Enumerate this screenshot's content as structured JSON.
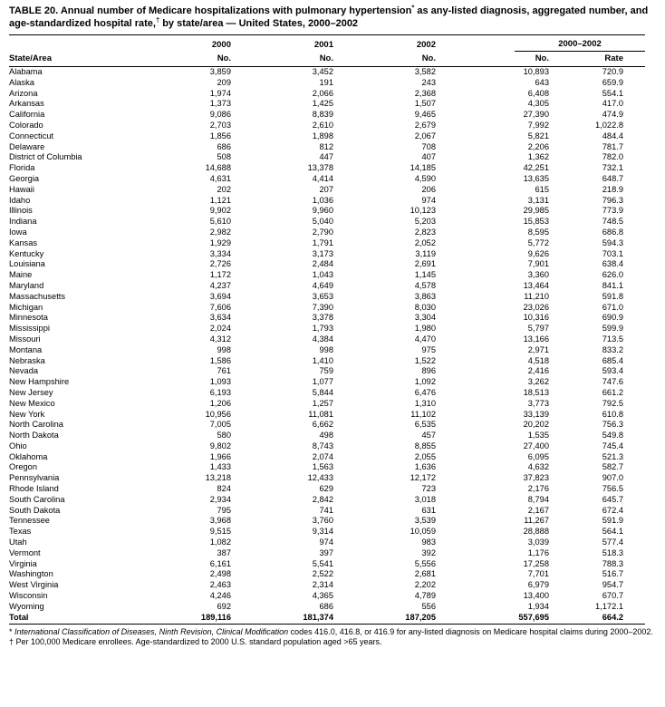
{
  "title": {
    "part1": "TABLE 20. Annual number of Medicare hospitalizations with pulmonary hypertension",
    "sup1": "*",
    "part2": " as any-listed diagnosis, aggregated number, and age-standardized hospital rate,",
    "sup2": "†",
    "part3": " by state/area — United States, 2000–2002"
  },
  "table": {
    "year_headers": [
      "2000",
      "2001",
      "2002"
    ],
    "group_header": "2000–2002",
    "col_headers": [
      "State/Area",
      "No.",
      "No.",
      "No.",
      "No.",
      "Rate"
    ],
    "rows": [
      [
        "Alabama",
        "3,859",
        "3,452",
        "3,582",
        "10,893",
        "720.9"
      ],
      [
        "Alaska",
        "209",
        "191",
        "243",
        "643",
        "659.9"
      ],
      [
        "Arizona",
        "1,974",
        "2,066",
        "2,368",
        "6,408",
        "554.1"
      ],
      [
        "Arkansas",
        "1,373",
        "1,425",
        "1,507",
        "4,305",
        "417.0"
      ],
      [
        "California",
        "9,086",
        "8,839",
        "9,465",
        "27,390",
        "474.9"
      ],
      [
        "Colorado",
        "2,703",
        "2,610",
        "2,679",
        "7,992",
        "1,022.8"
      ],
      [
        "Connecticut",
        "1,856",
        "1,898",
        "2,067",
        "5,821",
        "484.4"
      ],
      [
        "Delaware",
        "686",
        "812",
        "708",
        "2,206",
        "781.7"
      ],
      [
        "District of Columbia",
        "508",
        "447",
        "407",
        "1,362",
        "782.0"
      ],
      [
        "Florida",
        "14,688",
        "13,378",
        "14,185",
        "42,251",
        "732.1"
      ],
      [
        "Georgia",
        "4,631",
        "4,414",
        "4,590",
        "13,635",
        "648.7"
      ],
      [
        "Hawaii",
        "202",
        "207",
        "206",
        "615",
        "218.9"
      ],
      [
        "Idaho",
        "1,121",
        "1,036",
        "974",
        "3,131",
        "796.3"
      ],
      [
        "Illinois",
        "9,902",
        "9,960",
        "10,123",
        "29,985",
        "773.9"
      ],
      [
        "Indiana",
        "5,610",
        "5,040",
        "5,203",
        "15,853",
        "748.5"
      ],
      [
        "Iowa",
        "2,982",
        "2,790",
        "2,823",
        "8,595",
        "686.8"
      ],
      [
        "Kansas",
        "1,929",
        "1,791",
        "2,052",
        "5,772",
        "594.3"
      ],
      [
        "Kentucky",
        "3,334",
        "3,173",
        "3,119",
        "9,626",
        "703.1"
      ],
      [
        "Louisiana",
        "2,726",
        "2,484",
        "2,691",
        "7,901",
        "638.4"
      ],
      [
        "Maine",
        "1,172",
        "1,043",
        "1,145",
        "3,360",
        "626.0"
      ],
      [
        "Maryland",
        "4,237",
        "4,649",
        "4,578",
        "13,464",
        "841.1"
      ],
      [
        "Massachusetts",
        "3,694",
        "3,653",
        "3,863",
        "11,210",
        "591.8"
      ],
      [
        "Michigan",
        "7,606",
        "7,390",
        "8,030",
        "23,026",
        "671.0"
      ],
      [
        "Minnesota",
        "3,634",
        "3,378",
        "3,304",
        "10,316",
        "690.9"
      ],
      [
        "Mississippi",
        "2,024",
        "1,793",
        "1,980",
        "5,797",
        "599.9"
      ],
      [
        "Missouri",
        "4,312",
        "4,384",
        "4,470",
        "13,166",
        "713.5"
      ],
      [
        "Montana",
        "998",
        "998",
        "975",
        "2,971",
        "833.2"
      ],
      [
        "Nebraska",
        "1,586",
        "1,410",
        "1,522",
        "4,518",
        "685.4"
      ],
      [
        "Nevada",
        "761",
        "759",
        "896",
        "2,416",
        "593.4"
      ],
      [
        "New Hampshire",
        "1,093",
        "1,077",
        "1,092",
        "3,262",
        "747.6"
      ],
      [
        "New Jersey",
        "6,193",
        "5,844",
        "6,476",
        "18,513",
        "661.2"
      ],
      [
        "New Mexico",
        "1,206",
        "1,257",
        "1,310",
        "3,773",
        "792.5"
      ],
      [
        "New York",
        "10,956",
        "11,081",
        "11,102",
        "33,139",
        "610.8"
      ],
      [
        "North Carolina",
        "7,005",
        "6,662",
        "6,535",
        "20,202",
        "756.3"
      ],
      [
        "North Dakota",
        "580",
        "498",
        "457",
        "1,535",
        "549.8"
      ],
      [
        "Ohio",
        "9,802",
        "8,743",
        "8,855",
        "27,400",
        "745.4"
      ],
      [
        "Oklahoma",
        "1,966",
        "2,074",
        "2,055",
        "6,095",
        "521.3"
      ],
      [
        "Oregon",
        "1,433",
        "1,563",
        "1,636",
        "4,632",
        "582.7"
      ],
      [
        "Pennsylvania",
        "13,218",
        "12,433",
        "12,172",
        "37,823",
        "907.0"
      ],
      [
        "Rhode Island",
        "824",
        "629",
        "723",
        "2,176",
        "756.5"
      ],
      [
        "South Carolina",
        "2,934",
        "2,842",
        "3,018",
        "8,794",
        "645.7"
      ],
      [
        "South Dakota",
        "795",
        "741",
        "631",
        "2,167",
        "672.4"
      ],
      [
        "Tennessee",
        "3,968",
        "3,760",
        "3,539",
        "11,267",
        "591.9"
      ],
      [
        "Texas",
        "9,515",
        "9,314",
        "10,059",
        "28,888",
        "564.1"
      ],
      [
        "Utah",
        "1,082",
        "974",
        "983",
        "3,039",
        "577.4"
      ],
      [
        "Vermont",
        "387",
        "397",
        "392",
        "1,176",
        "518.3"
      ],
      [
        "Virginia",
        "6,161",
        "5,541",
        "5,556",
        "17,258",
        "788.3"
      ],
      [
        "Washington",
        "2,498",
        "2,522",
        "2,681",
        "7,701",
        "516.7"
      ],
      [
        "West Virginia",
        "2,463",
        "2,314",
        "2,202",
        "6,979",
        "954.7"
      ],
      [
        "Wisconsin",
        "4,246",
        "4,365",
        "4,789",
        "13,400",
        "670.7"
      ],
      [
        "Wyoming",
        "692",
        "686",
        "556",
        "1,934",
        "1,172.1"
      ]
    ],
    "total_row": [
      "Total",
      "189,116",
      "181,374",
      "187,205",
      "557,695",
      "664.2"
    ]
  },
  "footnotes": {
    "f1_marker": "* ",
    "f1_italic": "International Classification of Diseases, Ninth Revision, Clinical Modification",
    "f1_rest": " codes 416.0, 416.8, or 416.9 for any-listed diagnosis on Medicare hospital claims during 2000–2002.",
    "f2_marker": "† ",
    "f2_text": "Per 100,000 Medicare enrollees. Age-standardized to 2000 U.S. standard population aged >65 years."
  }
}
